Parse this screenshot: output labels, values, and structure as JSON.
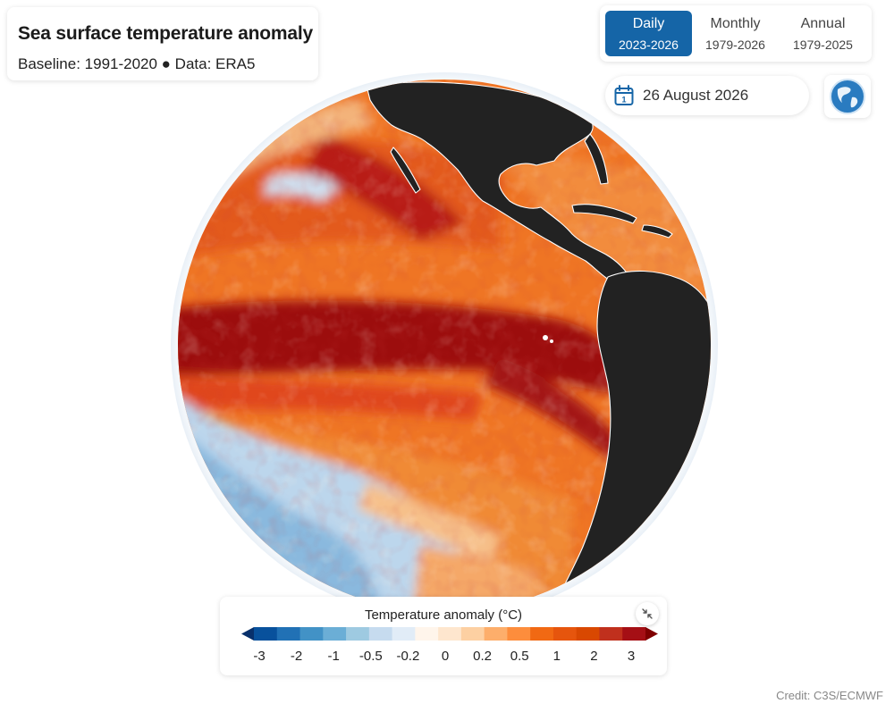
{
  "header": {
    "title": "Sea surface temperature anomaly",
    "subtitle": "Baseline: 1991-2020 ● Data: ERA5"
  },
  "modes": [
    {
      "label": "Daily",
      "range": "2023-2026",
      "active": true
    },
    {
      "label": "Monthly",
      "range": "1979-2026",
      "active": false
    },
    {
      "label": "Annual",
      "range": "1979-2025",
      "active": false
    }
  ],
  "date_picker": {
    "value": "26 August 2026",
    "icon": "calendar-icon"
  },
  "view_button": {
    "icon": "globe-icon"
  },
  "legend": {
    "title": "Temperature anomaly (°C)",
    "ticks": [
      "-3",
      "-2",
      "-1",
      "-0.5",
      "-0.2",
      "0",
      "0.2",
      "0.5",
      "1",
      "2",
      "3"
    ],
    "colors": [
      "#08306b",
      "#08519c",
      "#2171b5",
      "#4292c6",
      "#6baed6",
      "#9ecae1",
      "#c6dbef",
      "#e1ecf7",
      "#fff5eb",
      "#fee6ce",
      "#fdd0a2",
      "#fdae6b",
      "#fd8d3c",
      "#f16913",
      "#e6550d",
      "#d94801",
      "#c0301d",
      "#a50f15",
      "#7f0000"
    ]
  },
  "map": {
    "ocean_palette": {
      "strong_warm": "#9c0f10",
      "warm": "#e0451b",
      "moderate": "#f07826",
      "mild": "#f9a65a",
      "cool": "#c9dcee",
      "cold": "#7fb0d8"
    },
    "land_color": "#222222"
  },
  "credit": "Credit: C3S/ECMWF"
}
